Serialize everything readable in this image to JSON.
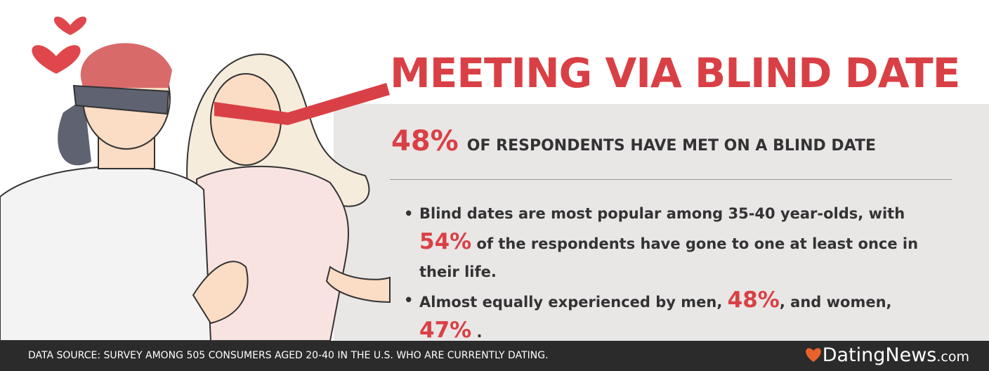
{
  "title": "MEETING VIA BLIND DATE",
  "headline": {
    "stat": "48%",
    "text": "OF RESPONDENTS HAVE MET ON A BLIND DATE"
  },
  "bullets": [
    {
      "parts": [
        "Blind dates are most popular among 35-40 year-olds, with",
        "54%",
        "of the respondents have gone to one at least once in their life."
      ]
    },
    {
      "parts": [
        "Almost equally experienced by men,",
        "48%",
        ", and women,",
        "47%",
        "."
      ]
    }
  ],
  "footer": {
    "source": "DATA SOURCE: SURVEY AMONG 505 CONSUMERS AGED 20-40 IN THE U.S. WHO ARE CURRENTLY DATING.",
    "brand": "DatingNews",
    "brand_suffix": ".com"
  }
}
